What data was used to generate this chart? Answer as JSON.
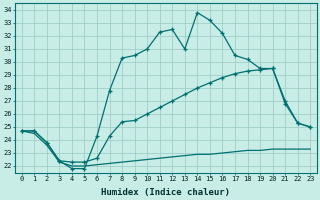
{
  "xlabel": "Humidex (Indice chaleur)",
  "background_color": "#c8ece6",
  "grid_color": "#a0d0c8",
  "line_color": "#007070",
  "xlim": [
    -0.5,
    23.5
  ],
  "ylim": [
    21.5,
    34.5
  ],
  "ytick_min": 22,
  "ytick_max": 34,
  "line_top_x": [
    0,
    1,
    2,
    3,
    4,
    5,
    6,
    7,
    8,
    9,
    10,
    11,
    12,
    13,
    14,
    15,
    16,
    17,
    18,
    19,
    20,
    21,
    22,
    23
  ],
  "line_top_y": [
    24.7,
    24.7,
    23.8,
    22.4,
    21.8,
    21.8,
    24.3,
    27.8,
    30.3,
    30.5,
    31.0,
    32.3,
    32.5,
    31.0,
    33.8,
    33.2,
    32.2,
    30.5,
    30.2,
    29.5,
    29.5,
    26.8,
    25.3,
    25.0
  ],
  "line_mid_x": [
    0,
    1,
    2,
    3,
    4,
    5,
    6,
    7,
    8,
    9,
    10,
    11,
    12,
    13,
    14,
    15,
    16,
    17,
    18,
    19,
    20,
    21,
    22,
    23
  ],
  "line_mid_y": [
    24.7,
    24.7,
    23.8,
    22.4,
    22.3,
    22.3,
    22.6,
    24.3,
    25.4,
    25.5,
    26.0,
    26.5,
    27.0,
    27.5,
    28.0,
    28.4,
    28.8,
    29.1,
    29.3,
    29.4,
    29.5,
    27.0,
    25.3,
    25.0
  ],
  "line_bot_x": [
    0,
    1,
    2,
    3,
    4,
    5,
    6,
    7,
    8,
    9,
    10,
    11,
    12,
    13,
    14,
    15,
    16,
    17,
    18,
    19,
    20,
    21,
    22,
    23
  ],
  "line_bot_y": [
    24.7,
    24.5,
    23.6,
    22.3,
    22.0,
    22.0,
    22.1,
    22.2,
    22.3,
    22.4,
    22.5,
    22.6,
    22.7,
    22.8,
    22.9,
    22.9,
    23.0,
    23.1,
    23.2,
    23.2,
    23.3,
    23.3,
    23.3,
    23.3
  ]
}
